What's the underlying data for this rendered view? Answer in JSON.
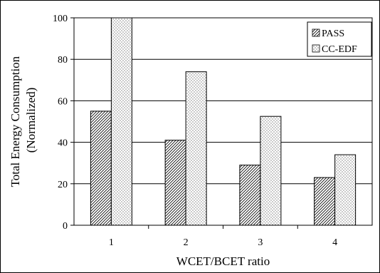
{
  "chart_data": {
    "type": "bar",
    "xlabel": "WCET/BCET ratio",
    "ylabel_lines": [
      "Total Energy Consumption",
      "(Normalized)"
    ],
    "categories": [
      "1",
      "2",
      "3",
      "4"
    ],
    "ylim": [
      0,
      100
    ],
    "yticks": [
      0,
      20,
      40,
      60,
      80,
      100
    ],
    "grid": "horizontal",
    "legend_position": "top-right",
    "series": [
      {
        "name": "PASS",
        "values": [
          55,
          41,
          29,
          23
        ],
        "pattern": "diagonal-hatch"
      },
      {
        "name": "CC-EDF",
        "values": [
          100,
          74,
          52.5,
          34
        ],
        "pattern": "dots"
      }
    ]
  }
}
